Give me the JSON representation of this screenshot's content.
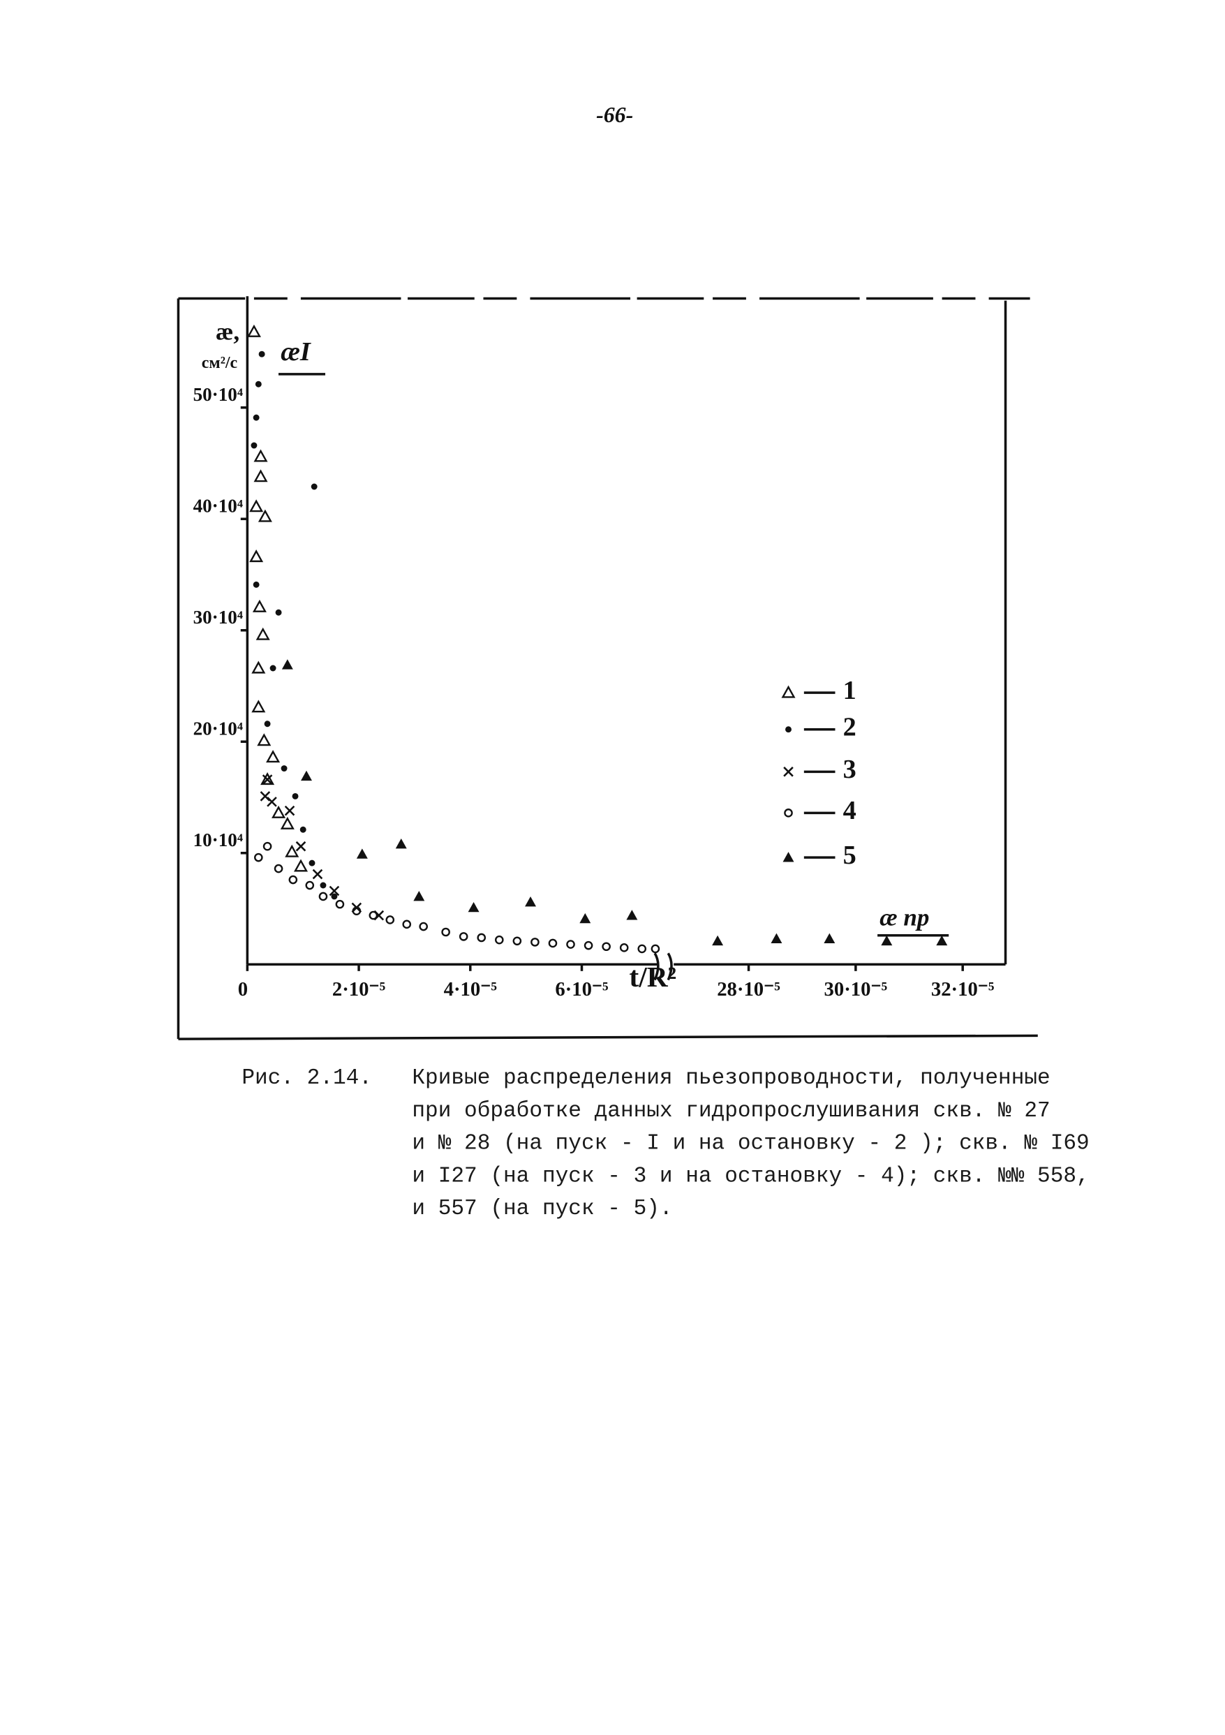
{
  "page_number": "-66-",
  "chart_data": {
    "type": "scatter",
    "y_label": [
      "æ,",
      "см²/с"
    ],
    "x_label": "t/R²",
    "annotations": [
      "æI",
      "æ пр"
    ],
    "xlim": [
      0,
      0.000328
    ],
    "xbreak": [
      7.35e-05,
      0.000266
    ],
    "ylim": [
      0,
      600000
    ],
    "xticks": [
      0,
      {
        "value": 2e-05,
        "label": "2·10⁻⁵"
      },
      {
        "value": 4e-05,
        "label": "4·10⁻⁵"
      },
      {
        "value": 6e-05,
        "label": "6·10⁻⁵"
      },
      {
        "value": 0.00028,
        "label": "28·10⁻⁵"
      },
      {
        "value": 0.0003,
        "label": "30·10⁻⁵"
      },
      {
        "value": 0.00032,
        "label": "32·10⁻⁵"
      }
    ],
    "yticks": [
      {
        "value": 100000,
        "label": "10·10⁴"
      },
      {
        "value": 200000,
        "label": "20·10⁴"
      },
      {
        "value": 300000,
        "label": "30·10⁴"
      },
      {
        "value": 400000,
        "label": "40·10⁴"
      },
      {
        "value": 500000,
        "label": "50·10⁴"
      }
    ],
    "legend": "right",
    "series": [
      {
        "name": "1",
        "color": "#111111",
        "marker": "triangle-open",
        "x": [
          1.2e-06,
          2.4e-06,
          2.4e-06,
          1.6e-06,
          3.2e-06,
          1.6e-06,
          2.2e-06,
          2.8e-06,
          2e-06,
          2e-06,
          3e-06,
          4.6e-06,
          3.6e-06,
          5.6e-06,
          7.2e-06,
          8e-06,
          9.6e-06
        ],
        "values": [
          568000,
          456000,
          438000,
          411000,
          402000,
          366000,
          321000,
          296000,
          266000,
          231000,
          201000,
          186000,
          166000,
          136000,
          126000,
          101000,
          88000
        ]
      },
      {
        "name": "2",
        "color": "#111111",
        "marker": "dot",
        "x": [
          2.6e-06,
          2e-06,
          1.6e-06,
          1.2e-05,
          1.2e-06,
          1.6e-06,
          5.6e-06,
          4.6e-06,
          3.6e-06,
          6.6e-06,
          8.6e-06,
          1e-05,
          1.16e-05,
          1.36e-05,
          1.56e-05
        ],
        "values": [
          548000,
          521000,
          491000,
          429000,
          466000,
          341000,
          316000,
          266000,
          216000,
          176000,
          151000,
          121000,
          91000,
          71000,
          61000
        ]
      },
      {
        "name": "3",
        "color": "#111111",
        "marker": "cross",
        "x": [
          3.6e-06,
          3.2e-06,
          4.4e-06,
          7.6e-06,
          9.6e-06,
          1.26e-05,
          1.56e-05,
          1.96e-05,
          2.36e-05
        ],
        "values": [
          166000,
          151000,
          146000,
          138000,
          106000,
          81000,
          66000,
          51000,
          44000
        ]
      },
      {
        "name": "4",
        "color": "#111111",
        "marker": "circle-open",
        "x": [
          2e-06,
          3.6e-06,
          5.6e-06,
          8.2e-06,
          1.12e-05,
          1.36e-05,
          1.66e-05,
          1.96e-05,
          2.26e-05,
          2.56e-05,
          2.86e-05,
          3.16e-05,
          3.56e-05,
          3.88e-05,
          4.2e-05,
          4.52e-05,
          4.84e-05,
          5.16e-05,
          5.48e-05,
          5.8e-05,
          6.12e-05,
          6.44e-05,
          6.76e-05,
          7.08e-05,
          7.32e-05
        ],
        "values": [
          96000,
          106000,
          86000,
          76000,
          71000,
          61000,
          54000,
          48000,
          44000,
          40000,
          36000,
          34000,
          29000,
          25000,
          24000,
          22000,
          21000,
          20000,
          19000,
          18000,
          17000,
          16000,
          15000,
          14000,
          14000
        ]
      },
      {
        "name": "5",
        "color": "#111111",
        "marker": "triangle",
        "x": [
          7.2e-06,
          1.06e-05,
          2.06e-05,
          2.76e-05,
          3.08e-05,
          4.06e-05,
          5.08e-05,
          6.06e-05,
          6.9e-05,
          0.0002742,
          0.0002852,
          0.0002951,
          0.0003058,
          0.0003161
        ],
        "values": [
          269000,
          169000,
          99000,
          108000,
          61000,
          51000,
          56000,
          41000,
          44000,
          21000,
          23000,
          23000,
          21000,
          21000
        ]
      }
    ]
  },
  "caption": {
    "label": "Рис. 2.14.",
    "lines": [
      "Кривые распределения пьезопроводности, полученные",
      "при обработке данных гидропрослушивания скв. № 27",
      "и № 28 (на пуск - I и на остановку - 2 ); скв. № I69",
      "и I27 (на пуск - 3 и на остановку - 4); скв. №№ 558,",
      "и 557 (на пуск - 5)."
    ]
  }
}
